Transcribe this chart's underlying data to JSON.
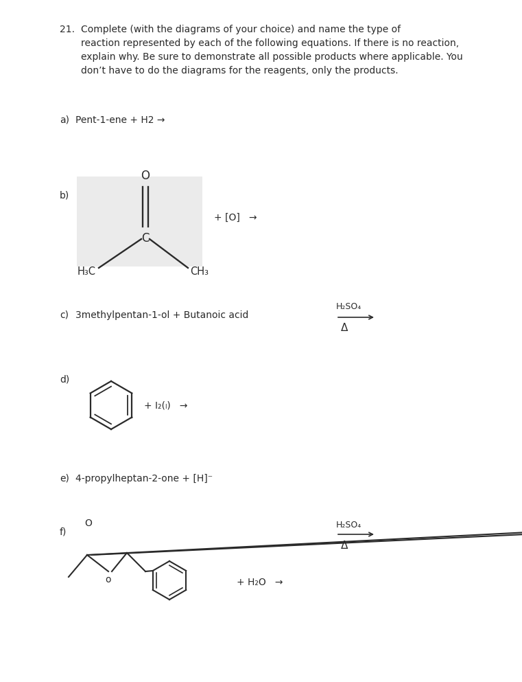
{
  "bg_color": "#ffffff",
  "text_color": "#2a2a2a",
  "mol_bg_color": "#ebebeb",
  "title_num": "21.",
  "title_body": "Complete (with the diagrams of your choice) and name the type of\nreaction represented by each of the following equations. If there is no reaction,\nexplain why. Be sure to demonstrate all possible products where applicable. You\ndon’t have to do the diagrams for the reagents, only the products.",
  "a_label": "a)",
  "a_text": "Pent-1-ene + H2 →",
  "b_label": "b)",
  "b_extra": "+ [O]   →",
  "c_label": "c)",
  "c_text": "3methylpentan-1-ol + Butanoic acid",
  "c_catalyst": "H₂SO₄",
  "c_delta": "Δ",
  "d_label": "d)",
  "d_extra": "+ I₂(ₗ)   →",
  "e_label": "e)",
  "e_text": "4-propylheptan-2-one + [H]⁻",
  "f_label": "f)",
  "f_extra": "+ H₂O   →",
  "f_catalyst": "H₂SO₄",
  "f_delta": "Δ",
  "fs": 10,
  "fs_small": 9
}
